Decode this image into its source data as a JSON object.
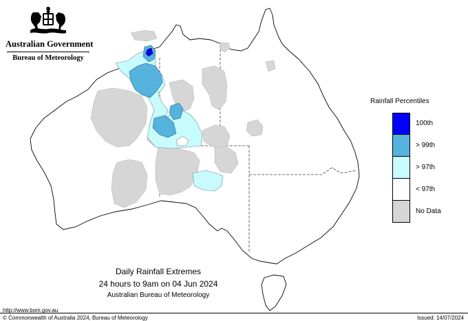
{
  "header": {
    "government": "Australian Government",
    "bureau": "Bureau of Meteorology"
  },
  "map": {
    "title": "Daily Rainfall Extremes",
    "period": "24 hours to 9am on 04 Jun 2024",
    "source": "Australian Bureau of Meteorology"
  },
  "legend": {
    "title": "Rainfall Percentiles",
    "items": [
      {
        "label": "100th",
        "color": "#0000ff"
      },
      {
        "label": "> 99th",
        "color": "#55b3dd"
      },
      {
        "label": "> 97th",
        "color": "#c8fbfb"
      },
      {
        "label": "< 97th",
        "color": "#ffffff"
      },
      {
        "label": "No Data",
        "color": "#d6d6d6"
      }
    ]
  },
  "colors": {
    "land_outline": "#000000",
    "no_data": "#d6d6d6",
    "p97": "#c8fbfb",
    "p99": "#55b3dd",
    "p100": "#0000ff"
  },
  "footer": {
    "url": "http://www.bom.gov.au",
    "copyright": "© Commonwealth of Australia 2024, Bureau of Meteorology",
    "issued": "Issued: 14/07/2024"
  }
}
